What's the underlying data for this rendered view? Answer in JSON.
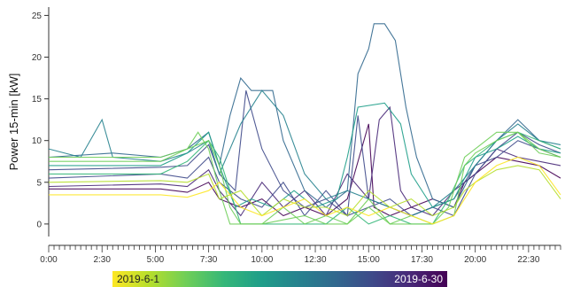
{
  "chart_data": {
    "type": "line",
    "ylabel": "Power 15-min [kW]",
    "xlabel": "",
    "ylim": [
      -1.5,
      26
    ],
    "xlim_hours": [
      0,
      24
    ],
    "y_ticks": [
      "0",
      "5",
      "10",
      "15",
      "20",
      "25"
    ],
    "x_ticks": [
      "0:00",
      "2:30",
      "5:00",
      "7:30",
      "10:00",
      "12:30",
      "15:00",
      "17:30",
      "20:00",
      "22:30"
    ],
    "interval_minutes": 15,
    "colorbar": {
      "start_label": "2019-6-1",
      "end_label": "2019-6-30",
      "colors": [
        "#fde725",
        "#b5de2b",
        "#6ece58",
        "#35b779",
        "#1f9e89",
        "#26828e",
        "#31688e",
        "#3e4989",
        "#482878",
        "#440154"
      ]
    },
    "series_colors": [
      "#fde725",
      "#b5de2b",
      "#6ece58",
      "#35b779",
      "#1f9e89",
      "#26828e",
      "#31688e",
      "#3e4989",
      "#482878",
      "#440154"
    ],
    "series": [
      {
        "points": [
          [
            0,
            4.2
          ],
          [
            5.25,
            4.2
          ],
          [
            6.5,
            3.8
          ],
          [
            7.5,
            5
          ],
          [
            8,
            3
          ],
          [
            9,
            2
          ],
          [
            10,
            3
          ],
          [
            11,
            1
          ],
          [
            12,
            2
          ],
          [
            13,
            1
          ],
          [
            14,
            3
          ],
          [
            15,
            12
          ],
          [
            15.25,
            2
          ],
          [
            16,
            1
          ],
          [
            17,
            2
          ],
          [
            18,
            3
          ],
          [
            19,
            2
          ],
          [
            19.5,
            5
          ],
          [
            20,
            6
          ],
          [
            21,
            8
          ],
          [
            22,
            7.5
          ],
          [
            23,
            7
          ],
          [
            24,
            5.5
          ]
        ]
      },
      {
        "points": [
          [
            0,
            4.5
          ],
          [
            5.25,
            4.8
          ],
          [
            6.5,
            4.5
          ],
          [
            7.5,
            6.5
          ],
          [
            8,
            4
          ],
          [
            9,
            1
          ],
          [
            10,
            5
          ],
          [
            11,
            2
          ],
          [
            12,
            4
          ],
          [
            13,
            1
          ],
          [
            14,
            6
          ],
          [
            15,
            3
          ],
          [
            15.5,
            12.5
          ],
          [
            16,
            14
          ],
          [
            16.5,
            4
          ],
          [
            17,
            2
          ],
          [
            18,
            1
          ],
          [
            19,
            4
          ],
          [
            20,
            6
          ],
          [
            21,
            9
          ],
          [
            22,
            8
          ],
          [
            23,
            7.5
          ],
          [
            24,
            7
          ]
        ]
      },
      {
        "points": [
          [
            0,
            5.5
          ],
          [
            5.25,
            6
          ],
          [
            6.5,
            5.5
          ],
          [
            7.5,
            8
          ],
          [
            8,
            5
          ],
          [
            9,
            3
          ],
          [
            10,
            2
          ],
          [
            11,
            5
          ],
          [
            12,
            1
          ],
          [
            13,
            4
          ],
          [
            14,
            1
          ],
          [
            14.5,
            13
          ],
          [
            15,
            3
          ],
          [
            16,
            2
          ],
          [
            17,
            1
          ],
          [
            18,
            2
          ],
          [
            19,
            3
          ],
          [
            20,
            7
          ],
          [
            21,
            8
          ],
          [
            22,
            10
          ],
          [
            23,
            9
          ],
          [
            24,
            8
          ]
        ]
      },
      {
        "points": [
          [
            0,
            6.5
          ],
          [
            5.25,
            6.8
          ],
          [
            6.5,
            7
          ],
          [
            7.5,
            9.5
          ],
          [
            8,
            6
          ],
          [
            8.75,
            4
          ],
          [
            9.25,
            16
          ],
          [
            10,
            9
          ],
          [
            11,
            4
          ],
          [
            12,
            2
          ],
          [
            13,
            3
          ],
          [
            14,
            1
          ],
          [
            15,
            2
          ],
          [
            16,
            3
          ],
          [
            17,
            1
          ],
          [
            18,
            2
          ],
          [
            19,
            1
          ],
          [
            20,
            6
          ],
          [
            21,
            9
          ],
          [
            22,
            11
          ],
          [
            23,
            9.5
          ],
          [
            24,
            8.5
          ]
        ]
      },
      {
        "points": [
          [
            0,
            8
          ],
          [
            3,
            8.5
          ],
          [
            5.25,
            8
          ],
          [
            6.5,
            9
          ],
          [
            7.5,
            11
          ],
          [
            8,
            7
          ],
          [
            8.5,
            13
          ],
          [
            9,
            17.5
          ],
          [
            9.5,
            16
          ],
          [
            10.5,
            16
          ],
          [
            11,
            10
          ],
          [
            12,
            4
          ],
          [
            13,
            2
          ],
          [
            14,
            4
          ],
          [
            14.5,
            18
          ],
          [
            15,
            21
          ],
          [
            15.25,
            24
          ],
          [
            15.75,
            24
          ],
          [
            16.25,
            22
          ],
          [
            16.75,
            14
          ],
          [
            17.25,
            8
          ],
          [
            18,
            3
          ],
          [
            19,
            2
          ],
          [
            20,
            7
          ],
          [
            21,
            10
          ],
          [
            22,
            12.5
          ],
          [
            23,
            10
          ],
          [
            24,
            9
          ]
        ]
      },
      {
        "points": [
          [
            0,
            9
          ],
          [
            1.5,
            8
          ],
          [
            2.5,
            12.5
          ],
          [
            3,
            8
          ],
          [
            5.25,
            7.5
          ],
          [
            6.5,
            8.5
          ],
          [
            7.5,
            10
          ],
          [
            8,
            6
          ],
          [
            9,
            12
          ],
          [
            10,
            16
          ],
          [
            11,
            13
          ],
          [
            12,
            6
          ],
          [
            13,
            3
          ],
          [
            14,
            4
          ],
          [
            15,
            3
          ],
          [
            16,
            2
          ],
          [
            17,
            1
          ],
          [
            18,
            2
          ],
          [
            19,
            4
          ],
          [
            20,
            7
          ],
          [
            21,
            10
          ],
          [
            22,
            12
          ],
          [
            23,
            10
          ],
          [
            24,
            9.5
          ]
        ]
      },
      {
        "points": [
          [
            0,
            7
          ],
          [
            5.25,
            7
          ],
          [
            6.5,
            8.5
          ],
          [
            7.5,
            11
          ],
          [
            8,
            7
          ],
          [
            8.75,
            2
          ],
          [
            9.5,
            3
          ],
          [
            10.5,
            2
          ],
          [
            11.5,
            4
          ],
          [
            12.5,
            2
          ],
          [
            13.5,
            3
          ],
          [
            14,
            8
          ],
          [
            14.5,
            14
          ],
          [
            15.75,
            14.5
          ],
          [
            16.5,
            12
          ],
          [
            17,
            6
          ],
          [
            18,
            2
          ],
          [
            19,
            3
          ],
          [
            20,
            8
          ],
          [
            21,
            9
          ],
          [
            22,
            10.5
          ],
          [
            23,
            9
          ],
          [
            24,
            8.5
          ]
        ]
      },
      {
        "points": [
          [
            0,
            6
          ],
          [
            5.25,
            6
          ],
          [
            6.5,
            7.5
          ],
          [
            7.5,
            10
          ],
          [
            8,
            8
          ],
          [
            8.5,
            4
          ],
          [
            9,
            0
          ],
          [
            10,
            0
          ],
          [
            12,
            0
          ],
          [
            13,
            0
          ],
          [
            14,
            2
          ],
          [
            15,
            0
          ],
          [
            16,
            1
          ],
          [
            17,
            0
          ],
          [
            18,
            0
          ],
          [
            18.75,
            3
          ],
          [
            19.5,
            7
          ],
          [
            20,
            8
          ],
          [
            21,
            10
          ],
          [
            22,
            11
          ],
          [
            23,
            10
          ],
          [
            24,
            9
          ]
        ]
      },
      {
        "points": [
          [
            0,
            8
          ],
          [
            5.25,
            8
          ],
          [
            6.5,
            9
          ],
          [
            7.5,
            10
          ],
          [
            8,
            7
          ],
          [
            8.5,
            2
          ],
          [
            9,
            0
          ],
          [
            10,
            0
          ],
          [
            11,
            2
          ],
          [
            12,
            0
          ],
          [
            13,
            1
          ],
          [
            14,
            0
          ],
          [
            15,
            2
          ],
          [
            16,
            0
          ],
          [
            17,
            1
          ],
          [
            18,
            0
          ],
          [
            18.75,
            2
          ],
          [
            19.5,
            8
          ],
          [
            20,
            9
          ],
          [
            21,
            11
          ],
          [
            22,
            11
          ],
          [
            23,
            9
          ],
          [
            24,
            8
          ]
        ]
      },
      {
        "points": [
          [
            0,
            7.5
          ],
          [
            5.25,
            7.5
          ],
          [
            6.5,
            9
          ],
          [
            7,
            11
          ],
          [
            7.5,
            9
          ],
          [
            8,
            4
          ],
          [
            8.5,
            0
          ],
          [
            10,
            0
          ],
          [
            12,
            1
          ],
          [
            13,
            0
          ],
          [
            14,
            0
          ],
          [
            15,
            3
          ],
          [
            16,
            0
          ],
          [
            17,
            0
          ],
          [
            18,
            0
          ],
          [
            19,
            1
          ],
          [
            19.5,
            7
          ],
          [
            20,
            8.5
          ],
          [
            21,
            10
          ],
          [
            22,
            11
          ],
          [
            23,
            8.5
          ],
          [
            24,
            8
          ]
        ]
      },
      {
        "points": [
          [
            0,
            5
          ],
          [
            5.25,
            5.2
          ],
          [
            6.5,
            5
          ],
          [
            7.5,
            6
          ],
          [
            8,
            3
          ],
          [
            9,
            4
          ],
          [
            10,
            1
          ],
          [
            11,
            3
          ],
          [
            12,
            2
          ],
          [
            13,
            2
          ],
          [
            14,
            1
          ],
          [
            15,
            4
          ],
          [
            16,
            2
          ],
          [
            17,
            3
          ],
          [
            18,
            1
          ],
          [
            19,
            2
          ],
          [
            19.5,
            4
          ],
          [
            20,
            5
          ],
          [
            21,
            6.5
          ],
          [
            22,
            7
          ],
          [
            23,
            6.5
          ],
          [
            24,
            3
          ]
        ]
      },
      {
        "points": [
          [
            0,
            3.5
          ],
          [
            5.25,
            3.5
          ],
          [
            6.5,
            3.2
          ],
          [
            7.5,
            4
          ],
          [
            8,
            5
          ],
          [
            9,
            2
          ],
          [
            10,
            1
          ],
          [
            11,
            2
          ],
          [
            12,
            3
          ],
          [
            13,
            1
          ],
          [
            14,
            2
          ],
          [
            15,
            1
          ],
          [
            16,
            2
          ],
          [
            17,
            1
          ],
          [
            18,
            0
          ],
          [
            19,
            1
          ],
          [
            19.5,
            3
          ],
          [
            20,
            5
          ],
          [
            21,
            7
          ],
          [
            22,
            8
          ],
          [
            23,
            7
          ],
          [
            24,
            3.5
          ]
        ]
      }
    ]
  }
}
